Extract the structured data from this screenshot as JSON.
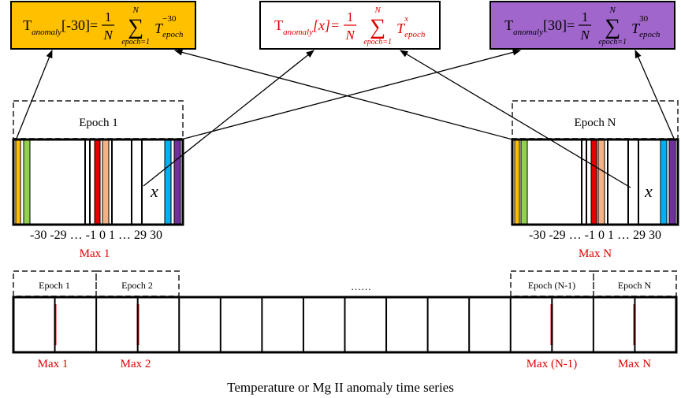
{
  "formulas": [
    {
      "T": "T",
      "sub": "anomaly",
      "arg": "[-30]=",
      "num": "1",
      "den": "N",
      "sum_top": "N",
      "sum": "∑",
      "sum_bottom": "epoch=1",
      "term": "T",
      "term_sup": "−30",
      "term_sub": "epoch"
    },
    {
      "T": "T",
      "sub": "anomaly",
      "arg": "[x]=",
      "num": "1",
      "den": "N",
      "sum_top": "N",
      "sum": "∑",
      "sum_bottom": "epoch=1",
      "term": "T",
      "term_sup": "x",
      "term_sub": "epoch"
    },
    {
      "T": "T",
      "sub": "anomaly",
      "arg": "[30]=",
      "num": "1",
      "den": "N",
      "sum_top": "N",
      "sum": "∑",
      "sum_bottom": "epoch=1",
      "term": "T",
      "term_sup": "30",
      "term_sub": "epoch"
    }
  ],
  "epochs": [
    {
      "label": "Epoch 1",
      "marker": "x",
      "ticks": "-30 -29 …  -1  0 1  …  29 30",
      "max": "Max 1"
    },
    {
      "label": "Epoch N",
      "marker": "x",
      "ticks": "-30 -29 …  -1  0 1  …  29 30",
      "max": "Max N"
    }
  ],
  "series": {
    "epochs": [
      "Epoch 1",
      "Epoch 2",
      "……",
      "Epoch (N-1)",
      "Epoch N"
    ],
    "maxes": [
      "Max 1",
      "Max 2",
      "Max (N-1)",
      "Max N"
    ],
    "caption": "Temperature or Mg II anomaly time series"
  }
}
